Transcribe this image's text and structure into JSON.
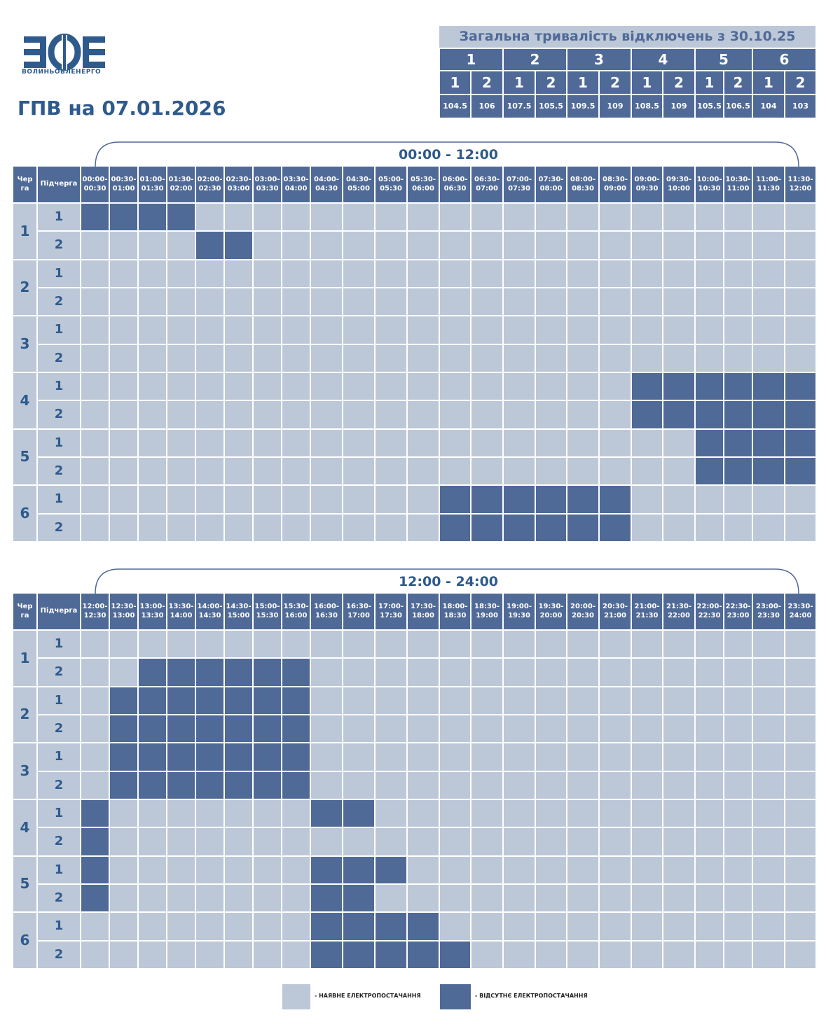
{
  "header": {
    "logo_letters": "ЗОЕ",
    "logo_text": "ВОЛИНЬОБЛЕНЕРГО",
    "title": "ГПВ на 07.01.2026"
  },
  "summary": {
    "title": "Загальна тривалість відключень з 30.10.25",
    "groups": [
      {
        "name": "1",
        "subgroups": [
          "1",
          "2"
        ],
        "hours": [
          104.5,
          106
        ]
      },
      {
        "name": "2",
        "subgroups": [
          "1",
          "2"
        ],
        "hours": [
          107.5,
          105.5
        ]
      },
      {
        "name": "3",
        "subgroups": [
          "1",
          "2"
        ],
        "hours": [
          109.5,
          109
        ]
      },
      {
        "name": "4",
        "subgroups": [
          "1",
          "2"
        ],
        "hours": [
          108.5,
          109
        ]
      },
      {
        "name": "5",
        "subgroups": [
          "1",
          "2"
        ],
        "hours": [
          105.5,
          106.5
        ]
      },
      {
        "name": "6",
        "subgroups": [
          "1",
          "2"
        ],
        "hours": [
          104,
          103
        ]
      }
    ]
  },
  "legend": [
    {
      "label": "- НАЯВНЕ ЕЛЕКТРОПОСТАЧАННЯ",
      "color": "#bcc8d8"
    },
    {
      "label": "- ВІДСУТНЄ ЕЛЕКТРОПОСТАЧАННЯ",
      "color": "#506a97"
    }
  ],
  "schedules": [
    {
      "period": "00:00 - 12:00",
      "queue_header": "Черга",
      "subqueue_header": "Підчерга",
      "times": [
        [
          "00:00-",
          "00:30"
        ],
        [
          "00:30-",
          "01:00"
        ],
        [
          "01:00-",
          "01:30"
        ],
        [
          "01:30-",
          "02:00"
        ],
        [
          "02:00-",
          "02:30"
        ],
        [
          "02:30-",
          "03:00"
        ],
        [
          "03:00-",
          "03:30"
        ],
        [
          "03:30-",
          "04:00"
        ],
        [
          "04:00-",
          "04:30"
        ],
        [
          "04:30-",
          "05:00"
        ],
        [
          "05:00-",
          "05:30"
        ],
        [
          "05:30-",
          "06:00"
        ],
        [
          "06:00-",
          "06:30"
        ],
        [
          "06:30-",
          "07:00"
        ],
        [
          "07:00-",
          "07:30"
        ],
        [
          "07:30-",
          "08:00"
        ],
        [
          "08:00-",
          "08:30"
        ],
        [
          "08:30-",
          "09:00"
        ],
        [
          "09:00-",
          "09:30"
        ],
        [
          "09:30-",
          "10:00"
        ],
        [
          "10:00-",
          "10:30"
        ],
        [
          "10:30-",
          "11:00"
        ],
        [
          "11:00-",
          "11:30"
        ],
        [
          "11:30-",
          "12:00"
        ]
      ],
      "queues": [
        {
          "name": "1",
          "subqueues": [
            {
              "name": "1",
              "cells": [
                1,
                1,
                1,
                1,
                0,
                0,
                0,
                0,
                0,
                0,
                0,
                0,
                0,
                0,
                0,
                0,
                0,
                0,
                0,
                0,
                0,
                0,
                0,
                0
              ]
            },
            {
              "name": "2",
              "cells": [
                0,
                0,
                0,
                0,
                1,
                1,
                0,
                0,
                0,
                0,
                0,
                0,
                0,
                0,
                0,
                0,
                0,
                0,
                0,
                0,
                0,
                0,
                0,
                0
              ]
            }
          ]
        },
        {
          "name": "2",
          "subqueues": [
            {
              "name": "1",
              "cells": [
                0,
                0,
                0,
                0,
                0,
                0,
                0,
                0,
                0,
                0,
                0,
                0,
                0,
                0,
                0,
                0,
                0,
                0,
                0,
                0,
                0,
                0,
                0,
                0
              ]
            },
            {
              "name": "2",
              "cells": [
                0,
                0,
                0,
                0,
                0,
                0,
                0,
                0,
                0,
                0,
                0,
                0,
                0,
                0,
                0,
                0,
                0,
                0,
                0,
                0,
                0,
                0,
                0,
                0
              ]
            }
          ]
        },
        {
          "name": "3",
          "subqueues": [
            {
              "name": "1",
              "cells": [
                0,
                0,
                0,
                0,
                0,
                0,
                0,
                0,
                0,
                0,
                0,
                0,
                0,
                0,
                0,
                0,
                0,
                0,
                0,
                0,
                0,
                0,
                0,
                0
              ]
            },
            {
              "name": "2",
              "cells": [
                0,
                0,
                0,
                0,
                0,
                0,
                0,
                0,
                0,
                0,
                0,
                0,
                0,
                0,
                0,
                0,
                0,
                0,
                0,
                0,
                0,
                0,
                0,
                0
              ]
            }
          ]
        },
        {
          "name": "4",
          "subqueues": [
            {
              "name": "1",
              "cells": [
                0,
                0,
                0,
                0,
                0,
                0,
                0,
                0,
                0,
                0,
                0,
                0,
                0,
                0,
                0,
                0,
                0,
                0,
                1,
                1,
                1,
                1,
                1,
                1
              ]
            },
            {
              "name": "2",
              "cells": [
                0,
                0,
                0,
                0,
                0,
                0,
                0,
                0,
                0,
                0,
                0,
                0,
                0,
                0,
                0,
                0,
                0,
                0,
                1,
                1,
                1,
                1,
                1,
                1
              ]
            }
          ]
        },
        {
          "name": "5",
          "subqueues": [
            {
              "name": "1",
              "cells": [
                0,
                0,
                0,
                0,
                0,
                0,
                0,
                0,
                0,
                0,
                0,
                0,
                0,
                0,
                0,
                0,
                0,
                0,
                0,
                0,
                1,
                1,
                1,
                1
              ]
            },
            {
              "name": "2",
              "cells": [
                0,
                0,
                0,
                0,
                0,
                0,
                0,
                0,
                0,
                0,
                0,
                0,
                0,
                0,
                0,
                0,
                0,
                0,
                0,
                0,
                1,
                1,
                1,
                1
              ]
            }
          ]
        },
        {
          "name": "6",
          "subqueues": [
            {
              "name": "1",
              "cells": [
                0,
                0,
                0,
                0,
                0,
                0,
                0,
                0,
                0,
                0,
                0,
                0,
                1,
                1,
                1,
                1,
                1,
                1,
                0,
                0,
                0,
                0,
                0,
                0
              ]
            },
            {
              "name": "2",
              "cells": [
                0,
                0,
                0,
                0,
                0,
                0,
                0,
                0,
                0,
                0,
                0,
                0,
                1,
                1,
                1,
                1,
                1,
                1,
                0,
                0,
                0,
                0,
                0,
                0
              ]
            }
          ]
        }
      ]
    },
    {
      "period": "12:00 - 24:00",
      "queue_header": "Черга",
      "subqueue_header": "Підчерга",
      "times": [
        [
          "12:00-",
          "12:30"
        ],
        [
          "12:30-",
          "13:00"
        ],
        [
          "13:00-",
          "13:30"
        ],
        [
          "13:30-",
          "14:00"
        ],
        [
          "14:00-",
          "14:30"
        ],
        [
          "14:30-",
          "15:00"
        ],
        [
          "15:00-",
          "15:30"
        ],
        [
          "15:30-",
          "16:00"
        ],
        [
          "16:00-",
          "16:30"
        ],
        [
          "16:30-",
          "17:00"
        ],
        [
          "17:00-",
          "17:30"
        ],
        [
          "17:30-",
          "18:00"
        ],
        [
          "18:00-",
          "18:30"
        ],
        [
          "18:30-",
          "19:00"
        ],
        [
          "19:00-",
          "19:30"
        ],
        [
          "19:30-",
          "20:00"
        ],
        [
          "20:00-",
          "20:30"
        ],
        [
          "20:30-",
          "21:00"
        ],
        [
          "21:00-",
          "21:30"
        ],
        [
          "21:30-",
          "22:00"
        ],
        [
          "22:00-",
          "22:30"
        ],
        [
          "22:30-",
          "23:00"
        ],
        [
          "23:00-",
          "23:30"
        ],
        [
          "23:30-",
          "24:00"
        ]
      ],
      "queues": [
        {
          "name": "1",
          "subqueues": [
            {
              "name": "1",
              "cells": [
                0,
                0,
                0,
                0,
                0,
                0,
                0,
                0,
                0,
                0,
                0,
                0,
                0,
                0,
                0,
                0,
                0,
                0,
                0,
                0,
                0,
                0,
                0,
                0
              ]
            },
            {
              "name": "2",
              "cells": [
                0,
                0,
                1,
                1,
                1,
                1,
                1,
                1,
                0,
                0,
                0,
                0,
                0,
                0,
                0,
                0,
                0,
                0,
                0,
                0,
                0,
                0,
                0,
                0
              ]
            }
          ]
        },
        {
          "name": "2",
          "subqueues": [
            {
              "name": "1",
              "cells": [
                0,
                1,
                1,
                1,
                1,
                1,
                1,
                1,
                0,
                0,
                0,
                0,
                0,
                0,
                0,
                0,
                0,
                0,
                0,
                0,
                0,
                0,
                0,
                0
              ]
            },
            {
              "name": "2",
              "cells": [
                0,
                1,
                1,
                1,
                1,
                1,
                1,
                1,
                0,
                0,
                0,
                0,
                0,
                0,
                0,
                0,
                0,
                0,
                0,
                0,
                0,
                0,
                0,
                0
              ]
            }
          ]
        },
        {
          "name": "3",
          "subqueues": [
            {
              "name": "1",
              "cells": [
                0,
                1,
                1,
                1,
                1,
                1,
                1,
                1,
                0,
                0,
                0,
                0,
                0,
                0,
                0,
                0,
                0,
                0,
                0,
                0,
                0,
                0,
                0,
                0
              ]
            },
            {
              "name": "2",
              "cells": [
                0,
                1,
                1,
                1,
                1,
                1,
                1,
                1,
                0,
                0,
                0,
                0,
                0,
                0,
                0,
                0,
                0,
                0,
                0,
                0,
                0,
                0,
                0,
                0
              ]
            }
          ]
        },
        {
          "name": "4",
          "subqueues": [
            {
              "name": "1",
              "cells": [
                1,
                0,
                0,
                0,
                0,
                0,
                0,
                0,
                1,
                1,
                0,
                0,
                0,
                0,
                0,
                0,
                0,
                0,
                0,
                0,
                0,
                0,
                0,
                0
              ]
            },
            {
              "name": "2",
              "cells": [
                1,
                0,
                0,
                0,
                0,
                0,
                0,
                0,
                0,
                0,
                0,
                0,
                0,
                0,
                0,
                0,
                0,
                0,
                0,
                0,
                0,
                0,
                0,
                0
              ]
            }
          ]
        },
        {
          "name": "5",
          "subqueues": [
            {
              "name": "1",
              "cells": [
                1,
                0,
                0,
                0,
                0,
                0,
                0,
                0,
                1,
                1,
                1,
                0,
                0,
                0,
                0,
                0,
                0,
                0,
                0,
                0,
                0,
                0,
                0,
                0
              ]
            },
            {
              "name": "2",
              "cells": [
                1,
                0,
                0,
                0,
                0,
                0,
                0,
                0,
                1,
                1,
                0,
                0,
                0,
                0,
                0,
                0,
                0,
                0,
                0,
                0,
                0,
                0,
                0,
                0
              ]
            }
          ]
        },
        {
          "name": "6",
          "subqueues": [
            {
              "name": "1",
              "cells": [
                0,
                0,
                0,
                0,
                0,
                0,
                0,
                0,
                1,
                1,
                1,
                1,
                0,
                0,
                0,
                0,
                0,
                0,
                0,
                0,
                0,
                0,
                0,
                0
              ]
            },
            {
              "name": "2",
              "cells": [
                0,
                0,
                0,
                0,
                0,
                0,
                0,
                0,
                1,
                1,
                1,
                1,
                1,
                0,
                0,
                0,
                0,
                0,
                0,
                0,
                0,
                0,
                0,
                0
              ]
            }
          ]
        }
      ]
    }
  ]
}
